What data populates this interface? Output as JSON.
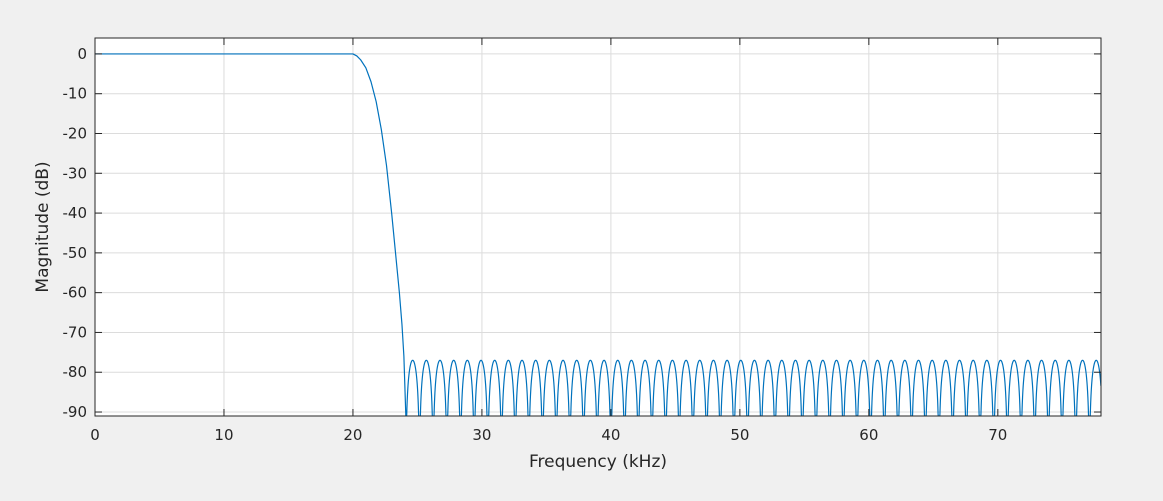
{
  "chart_data": {
    "type": "line",
    "title": "",
    "xlabel": "Frequency (kHz)",
    "ylabel": "Magnitude (dB)",
    "xlim": [
      0,
      78
    ],
    "ylim": [
      -91,
      4
    ],
    "x_ticks": [
      0,
      10,
      20,
      30,
      40,
      50,
      60,
      70
    ],
    "x_tick_labels": [
      "0",
      "10",
      "20",
      "30",
      "40",
      "50",
      "60",
      "70"
    ],
    "y_ticks": [
      0,
      -10,
      -20,
      -30,
      -40,
      -50,
      -60,
      -70,
      -80,
      -90
    ],
    "y_tick_labels": [
      "0",
      "-10",
      "-20",
      "-30",
      "-40",
      "-50",
      "-60",
      "-70",
      "-80",
      "-90"
    ],
    "grid": true,
    "legend": false,
    "series": [
      {
        "color": "#0072bd",
        "passband": {
          "x_range": [
            0,
            20.0
          ],
          "magnitude_db": 0
        },
        "transition": {
          "x": [
            20.0,
            20.3,
            20.6,
            21.0,
            21.4,
            21.8,
            22.2,
            22.6,
            23.0,
            23.3,
            23.6,
            23.8,
            23.95,
            24.1
          ],
          "y": [
            0,
            -0.5,
            -1.5,
            -3.5,
            -7,
            -12,
            -19,
            -28,
            -40,
            -50,
            -60,
            -68,
            -76,
            -91
          ]
        },
        "stopband": {
          "x_range": [
            24.1,
            78
          ],
          "ripple_period_khz": 1.06,
          "peak_db": -77,
          "notch_floor_db": -91
        }
      }
    ]
  }
}
